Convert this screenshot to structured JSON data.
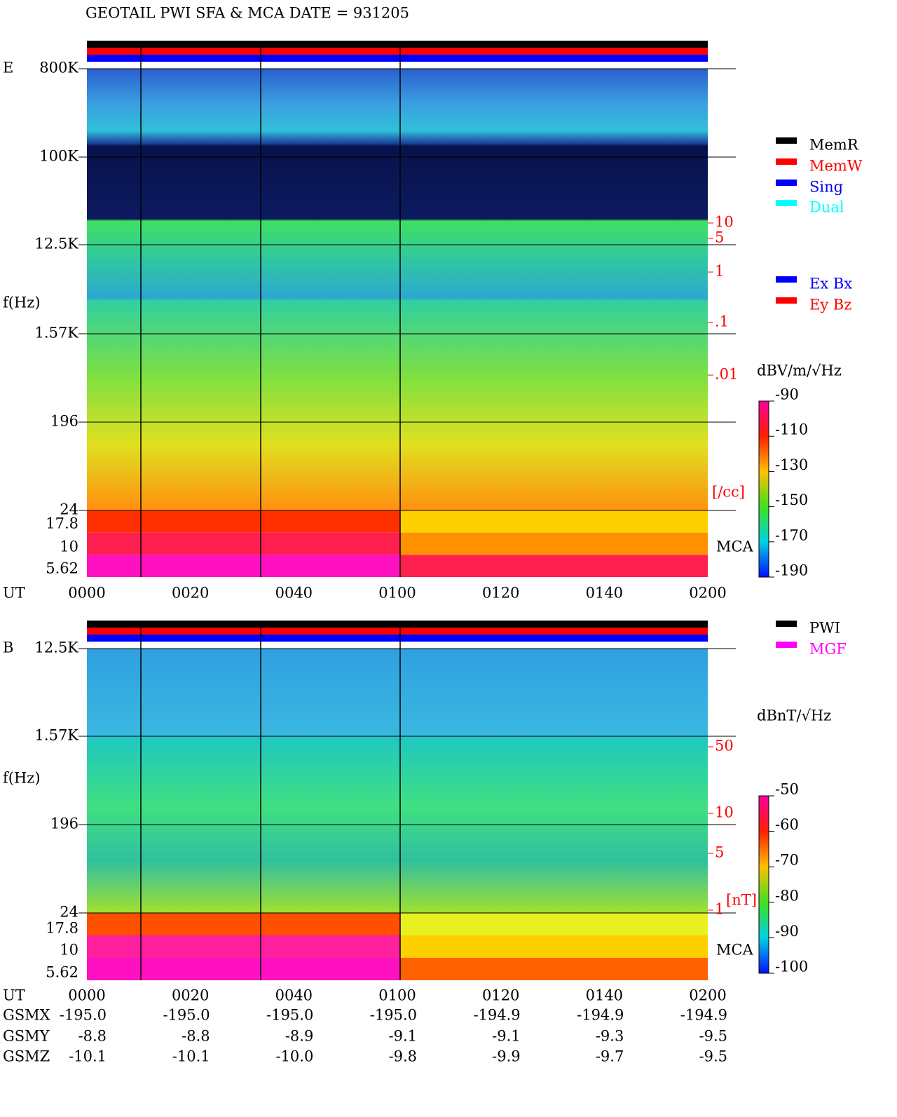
{
  "title": "GEOTAIL  PWI SFA & MCA   DATE = 931205",
  "panels": [
    {
      "label": "E",
      "freq_ticks": [
        "800K",
        "100K",
        "12.5K",
        "1.57K",
        "196",
        "24",
        "17.8",
        "10",
        "5.62"
      ],
      "axis_label": "f(Hz)",
      "time_label": "UT",
      "time_ticks": [
        "0000",
        "0020",
        "0040",
        "0100",
        "0120",
        "0140",
        "0200"
      ],
      "density_ticks": [
        "10",
        "5",
        "1",
        ".1",
        ".01"
      ],
      "density_unit": "[/cc]",
      "mca": "MCA",
      "colorbar_unit": "dBV/m/√Hz",
      "colorbar_ticks": [
        -90,
        -110,
        -130,
        -150,
        -170,
        -190
      ],
      "legend": [
        {
          "name": "MemR",
          "color": "#000000"
        },
        {
          "name": "MemW",
          "color": "#ff0000"
        },
        {
          "name": "Sing",
          "color": "#0000ff"
        },
        {
          "name": "Dual",
          "color": "#00ffff"
        }
      ],
      "legend2": [
        {
          "name": "Ex Bx",
          "color": "#0000ff"
        },
        {
          "name": "Ey Bz",
          "color": "#ff0000"
        }
      ]
    },
    {
      "label": "B",
      "freq_ticks": [
        "12.5K",
        "1.57K",
        "196",
        "24",
        "17.8",
        "10",
        "5.62"
      ],
      "axis_label": "f(Hz)",
      "time_label": "UT",
      "time_ticks": [
        "0000",
        "0020",
        "0040",
        "0100",
        "0120",
        "0140",
        "0200"
      ],
      "density_ticks": [
        "50",
        "10",
        "5",
        "1"
      ],
      "density_unit": "[nT]",
      "mca": "MCA",
      "colorbar_unit": "dBnT/√Hz",
      "colorbar_ticks": [
        -50,
        -60,
        -70,
        -80,
        -90,
        -100
      ],
      "legend": [
        {
          "name": "PWI",
          "color": "#000000"
        },
        {
          "name": "MGF",
          "color": "#ff00ff"
        }
      ]
    }
  ],
  "orbit": [
    {
      "name": "GSMX",
      "values": [
        "-195.0",
        "-195.0",
        "-195.0",
        "-195.0",
        "-194.9",
        "-194.9",
        "-194.9"
      ]
    },
    {
      "name": "GSMY",
      "values": [
        "-8.8",
        "-8.8",
        "-8.9",
        "-9.1",
        "-9.1",
        "-9.3",
        "-9.5"
      ]
    },
    {
      "name": "GSMZ",
      "values": [
        "-10.1",
        "-10.1",
        "-10.0",
        "-9.8",
        "-9.9",
        "-9.7",
        "-9.5"
      ]
    }
  ]
}
